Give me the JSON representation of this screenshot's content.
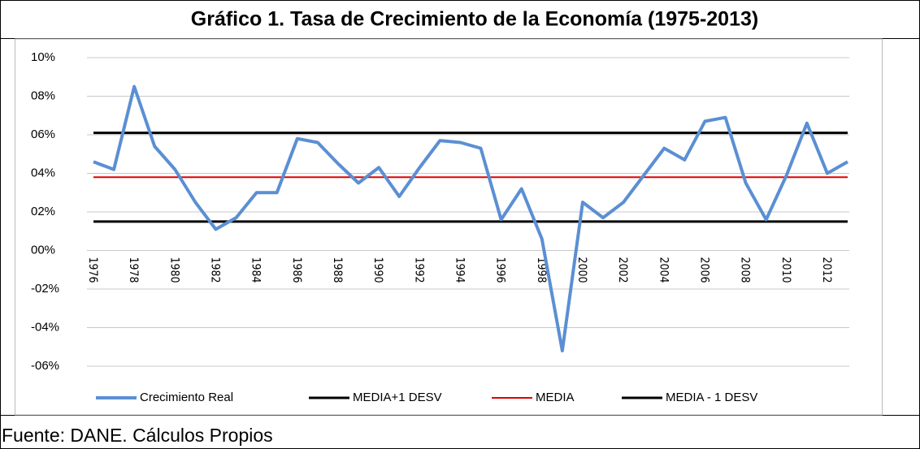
{
  "chart_data": {
    "type": "line",
    "title": "Gráfico 1. Tasa de Crecimiento de la Economía (1975-2013)",
    "source": "Fuente: DANE. Cálculos Propios",
    "categories": [
      "1976",
      null,
      "1978",
      null,
      "1980",
      null,
      "1982",
      null,
      "1984",
      null,
      "1986",
      null,
      "1988",
      null,
      "1990",
      null,
      "1992",
      null,
      "1994",
      null,
      "1996",
      null,
      "1998",
      null,
      "2000",
      null,
      "2002",
      null,
      "2004",
      null,
      "2006",
      null,
      "2008",
      null,
      "2010",
      null,
      "2012",
      null
    ],
    "series": [
      {
        "name": "Crecimiento Real",
        "color": "#5b8fd3",
        "width": 4,
        "values": [
          4.6,
          4.2,
          8.5,
          5.4,
          4.2,
          2.5,
          1.1,
          1.7,
          3.0,
          3.0,
          5.8,
          5.6,
          4.5,
          3.5,
          4.3,
          2.8,
          4.3,
          5.7,
          5.6,
          5.3,
          1.6,
          3.2,
          0.6,
          -5.2,
          2.5,
          1.7,
          2.5,
          3.9,
          5.3,
          4.7,
          6.7,
          6.9,
          3.5,
          1.6,
          3.9,
          6.6,
          4.0,
          4.6
        ]
      },
      {
        "name": "MEDIA+1 DESV",
        "color": "#000000",
        "width": 3,
        "values": [
          6.1,
          6.1,
          6.1,
          6.1,
          6.1,
          6.1,
          6.1,
          6.1,
          6.1,
          6.1,
          6.1,
          6.1,
          6.1,
          6.1,
          6.1,
          6.1,
          6.1,
          6.1,
          6.1,
          6.1,
          6.1,
          6.1,
          6.1,
          6.1,
          6.1,
          6.1,
          6.1,
          6.1,
          6.1,
          6.1,
          6.1,
          6.1,
          6.1,
          6.1,
          6.1,
          6.1,
          6.1,
          6.1
        ]
      },
      {
        "name": "MEDIA",
        "color": "#e00000",
        "width": 2,
        "values": [
          3.8,
          3.8,
          3.8,
          3.8,
          3.8,
          3.8,
          3.8,
          3.8,
          3.8,
          3.8,
          3.8,
          3.8,
          3.8,
          3.8,
          3.8,
          3.8,
          3.8,
          3.8,
          3.8,
          3.8,
          3.8,
          3.8,
          3.8,
          3.8,
          3.8,
          3.8,
          3.8,
          3.8,
          3.8,
          3.8,
          3.8,
          3.8,
          3.8,
          3.8,
          3.8,
          3.8,
          3.8,
          3.8
        ]
      },
      {
        "name": "MEDIA - 1 DESV",
        "color": "#000000",
        "width": 3,
        "values": [
          1.5,
          1.5,
          1.5,
          1.5,
          1.5,
          1.5,
          1.5,
          1.5,
          1.5,
          1.5,
          1.5,
          1.5,
          1.5,
          1.5,
          1.5,
          1.5,
          1.5,
          1.5,
          1.5,
          1.5,
          1.5,
          1.5,
          1.5,
          1.5,
          1.5,
          1.5,
          1.5,
          1.5,
          1.5,
          1.5,
          1.5,
          1.5,
          1.5,
          1.5,
          1.5,
          1.5,
          1.5,
          1.5
        ]
      }
    ],
    "ylim": [
      -6,
      10
    ],
    "yticks": [
      {
        "value": -6,
        "label": "-06%"
      },
      {
        "value": -4,
        "label": "-04%"
      },
      {
        "value": -2,
        "label": "-02%"
      },
      {
        "value": 0,
        "label": "00%"
      },
      {
        "value": 2,
        "label": "02%"
      },
      {
        "value": 4,
        "label": "04%"
      },
      {
        "value": 6,
        "label": "06%"
      },
      {
        "value": 8,
        "label": "08%"
      },
      {
        "value": 10,
        "label": "10%"
      }
    ],
    "grid": true,
    "legend": "bottom"
  }
}
